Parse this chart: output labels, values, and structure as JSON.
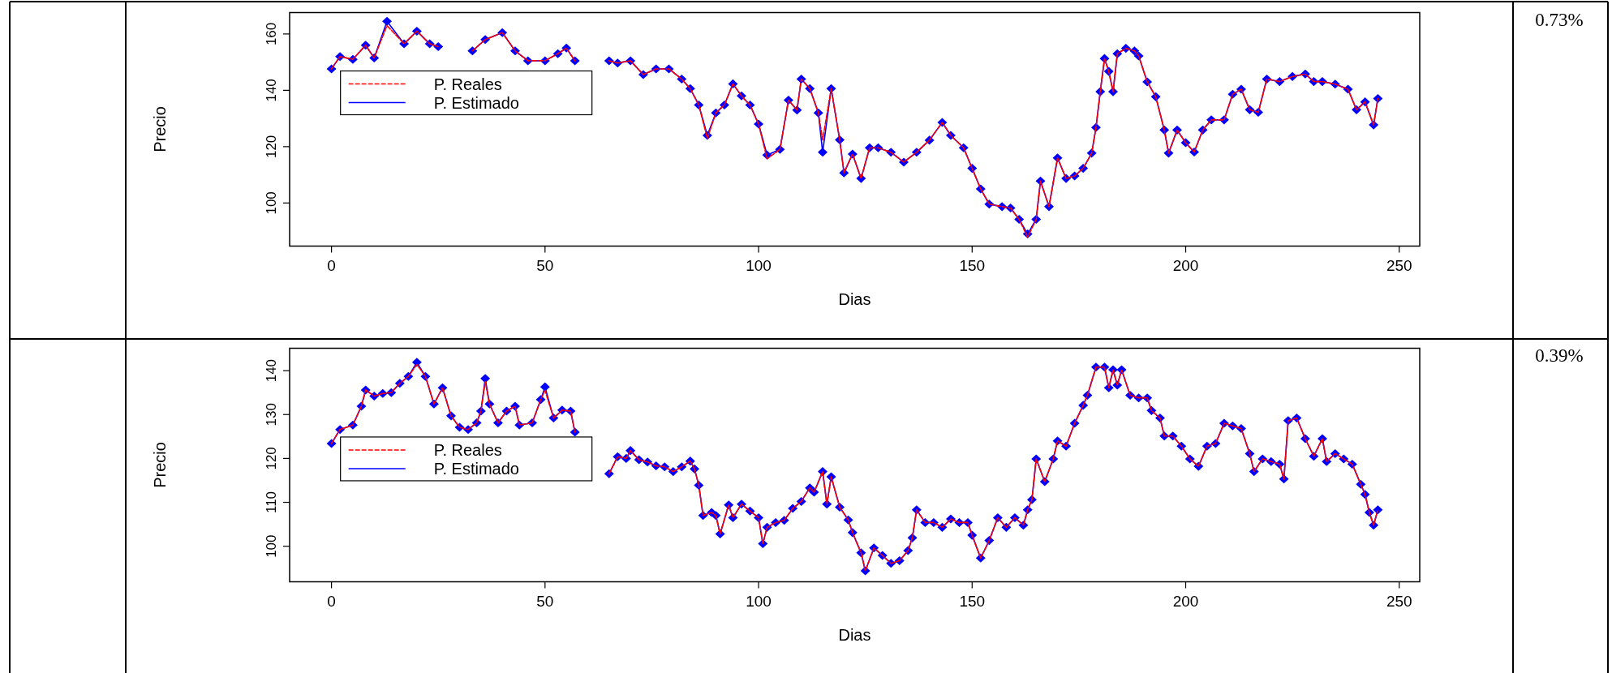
{
  "chart_data": [
    {
      "type": "line",
      "xlabel": "Dias",
      "ylabel": "Precio",
      "annotations": [
        "0.73%"
      ],
      "xlim": [
        -9.8,
        254.8
      ],
      "xticks": [
        0,
        50,
        100,
        150,
        200,
        250
      ],
      "ylim": [
        84.7,
        167.6
      ],
      "yticks": [
        100,
        120,
        140,
        160
      ],
      "grid": false,
      "legend": "top left",
      "x": [
        0,
        2,
        5,
        8,
        10,
        13,
        17,
        20,
        23,
        25,
        27,
        30,
        33,
        36,
        40,
        43,
        46,
        50,
        53,
        55,
        57,
        60,
        65,
        67,
        70,
        73,
        76,
        79,
        82,
        84,
        86,
        88,
        90,
        92,
        94,
        96,
        98,
        100,
        102,
        105,
        107,
        109,
        110,
        112,
        114,
        115,
        117,
        119,
        120,
        122,
        124,
        126,
        128,
        131,
        134,
        137,
        140,
        143,
        145,
        148,
        150,
        152,
        154,
        157,
        159,
        161,
        163,
        165,
        166,
        168,
        170,
        172,
        174,
        176,
        178,
        179,
        180,
        181,
        182,
        183,
        184,
        186,
        188,
        189,
        191,
        193,
        195,
        196,
        198,
        200,
        202,
        204,
        206,
        209,
        211,
        213,
        215,
        217,
        219,
        222,
        225,
        228,
        230,
        232,
        235,
        238,
        240,
        242,
        244,
        245
      ],
      "series": [
        {
          "name": "P. Reales",
          "color": "#ff0000",
          "line_style": "dashed",
          "marker": "none",
          "values": [
            147.6,
            152,
            151,
            156,
            151.5,
            163,
            156.5,
            161,
            156.5,
            155.5,
            null,
            null,
            154,
            158,
            160.5,
            154,
            150.5,
            150.5,
            153,
            155,
            150.5,
            null,
            150.5,
            149.7,
            150.5,
            145.6,
            147.6,
            147.6,
            144,
            140.6,
            134.8,
            123,
            132,
            134.8,
            142.3,
            138,
            134.8,
            128,
            115.7,
            119,
            136.5,
            133,
            144,
            140.6,
            132,
            122.4,
            140.6,
            122.4,
            110.7,
            117.4,
            108.7,
            119.6,
            119.6,
            118,
            114.5,
            118,
            122.3,
            128.6,
            124,
            119.6,
            112.3,
            105,
            99.6,
            98.7,
            98.2,
            94.2,
            87.9,
            94.2,
            107.8,
            98.7,
            116,
            108.7,
            109.6,
            112.3,
            117.7,
            126.8,
            139.5,
            151.3,
            146.7,
            139.5,
            153,
            154.9,
            154,
            152.2,
            143,
            137.7,
            125.9,
            117.7,
            125.9,
            121.4,
            118.1,
            125.9,
            129.5,
            129.5,
            138.6,
            140.4,
            133.1,
            132.2,
            144,
            143.1,
            144.9,
            145.8,
            143.1,
            143.1,
            142.2,
            140.4,
            133.1,
            135.9,
            127.7,
            137.1
          ]
        },
        {
          "name": "P. Estimado",
          "color": "#0000ff",
          "line_style": "solid",
          "marker": "diamond",
          "values": [
            147.6,
            152,
            151,
            156,
            151.5,
            164.5,
            156.5,
            161,
            156.5,
            155.5,
            null,
            null,
            154,
            158,
            160.5,
            154,
            150.5,
            150.5,
            153,
            155,
            150.5,
            null,
            150.5,
            149.7,
            150.5,
            145.6,
            147.6,
            147.6,
            144,
            140.6,
            134.8,
            124,
            132,
            134.8,
            142.3,
            138,
            134.8,
            128,
            117,
            119,
            136.5,
            133,
            144,
            140.6,
            132,
            118,
            140.6,
            122.4,
            110.7,
            117.4,
            108.7,
            119.6,
            119.6,
            118,
            114.5,
            118,
            122.3,
            128.6,
            124,
            119.6,
            112.3,
            105,
            99.6,
            98.7,
            98.2,
            94.2,
            89,
            94.2,
            107.8,
            98.7,
            116,
            108.7,
            109.6,
            112.3,
            117.7,
            126.8,
            139.5,
            151.3,
            146.7,
            139.5,
            153,
            154.9,
            154,
            152.2,
            143,
            137.7,
            125.9,
            117.7,
            125.9,
            121.4,
            118.1,
            125.9,
            129.5,
            129.5,
            138.6,
            140.4,
            133.1,
            132.2,
            144,
            143.1,
            144.9,
            145.8,
            143.1,
            143.1,
            142.2,
            140.4,
            133.1,
            135.9,
            127.7,
            137.1
          ]
        }
      ]
    },
    {
      "type": "line",
      "xlabel": "Dias",
      "ylabel": "Precio",
      "annotations": [
        "0.39%"
      ],
      "xlim": [
        -9.8,
        254.8
      ],
      "xticks": [
        0,
        50,
        100,
        150,
        200,
        250
      ],
      "ylim": [
        91.9,
        145.1
      ],
      "yticks": [
        100,
        110,
        120,
        130,
        140
      ],
      "grid": false,
      "legend": "top left",
      "x": [
        0,
        2,
        5,
        7,
        8,
        10,
        12,
        14,
        16,
        18,
        20,
        22,
        24,
        26,
        28,
        30,
        32,
        34,
        35,
        36,
        37,
        39,
        41,
        43,
        44,
        47,
        49,
        50,
        52,
        54,
        56,
        57,
        60,
        65,
        67,
        69,
        70,
        72,
        74,
        76,
        78,
        80,
        82,
        84,
        85,
        86,
        87,
        89,
        90,
        91,
        93,
        94,
        96,
        98,
        100,
        101,
        102,
        104,
        106,
        108,
        110,
        112,
        113,
        115,
        116,
        117,
        119,
        121,
        122,
        124,
        125,
        127,
        129,
        131,
        133,
        135,
        136,
        137,
        139,
        141,
        143,
        145,
        147,
        149,
        150,
        152,
        154,
        156,
        158,
        160,
        162,
        163,
        164,
        165,
        167,
        169,
        170,
        172,
        174,
        176,
        177,
        179,
        181,
        182,
        183,
        184,
        185,
        187,
        189,
        191,
        192,
        194,
        195,
        197,
        199,
        201,
        203,
        205,
        207,
        209,
        211,
        213,
        215,
        216,
        218,
        220,
        222,
        223,
        224,
        226,
        228,
        230,
        232,
        233,
        235,
        237,
        239,
        241,
        242,
        243,
        244,
        245
      ],
      "series": [
        {
          "name": "P. Reales",
          "color": "#ff0000",
          "line_style": "dashed",
          "marker": "none",
          "values": [
            123.4,
            126.6,
            127.6,
            131.9,
            135.6,
            134.2,
            134.8,
            135,
            137.1,
            138.7,
            141.4,
            138.7,
            132.4,
            136.1,
            129.7,
            127.1,
            126.6,
            128.1,
            130.8,
            137.5,
            132.4,
            128.1,
            130.8,
            131.9,
            127.6,
            128.1,
            133.4,
            135.5,
            129.2,
            131,
            130.8,
            126,
            null,
            116.5,
            120.4,
            120,
            121.8,
            119.7,
            119.2,
            118.3,
            118.1,
            117,
            118.1,
            119.4,
            117.6,
            113.9,
            107,
            107.7,
            107,
            102.8,
            109.4,
            106.5,
            109.6,
            108,
            106.5,
            100.6,
            104.3,
            105.4,
            105.9,
            108.6,
            110.2,
            113.3,
            112.3,
            117,
            109.6,
            115.8,
            108.9,
            106,
            103.1,
            98.5,
            94.4,
            99.6,
            97.9,
            96.1,
            96.7,
            99,
            101.9,
            108.3,
            105.4,
            105.4,
            104.3,
            106.2,
            105.4,
            105.4,
            102.5,
            97.3,
            101.3,
            106.5,
            104.3,
            106.5,
            104.8,
            108.3,
            110.6,
            119.9,
            114.7,
            119.9,
            124,
            122.8,
            128,
            132.1,
            134.4,
            140.8,
            140.8,
            136.1,
            140.2,
            136.7,
            140.2,
            134.4,
            133.8,
            133.8,
            130.9,
            129.2,
            125.1,
            125.1,
            122.8,
            119.9,
            118.2,
            122.8,
            123.4,
            128,
            127.4,
            126.8,
            121.1,
            117,
            119.9,
            119.3,
            118.7,
            115.3,
            128.6,
            129.2,
            124.5,
            120.5,
            124.5,
            119.3,
            121.1,
            119.9,
            118.7,
            114.1,
            111.8,
            107.7,
            104.8,
            108.3
          ]
        },
        {
          "name": "P. Estimado",
          "color": "#0000ff",
          "line_style": "solid",
          "marker": "diamond",
          "values": [
            123.4,
            126.6,
            127.6,
            131.9,
            135.6,
            134.2,
            134.8,
            135,
            137.1,
            138.7,
            141.9,
            138.7,
            132.4,
            136.1,
            129.7,
            127.1,
            126.6,
            128.1,
            130.8,
            138.2,
            132.4,
            128.1,
            130.8,
            131.9,
            127.6,
            128.1,
            133.4,
            136.3,
            129.2,
            131,
            130.8,
            126,
            null,
            116.5,
            120.4,
            120,
            121.8,
            119.7,
            119.2,
            118.3,
            118.1,
            117,
            118.1,
            119.4,
            117.6,
            113.9,
            107,
            107.7,
            107,
            102.8,
            109.4,
            106.5,
            109.6,
            108,
            106.5,
            100.6,
            104.3,
            105.4,
            105.9,
            108.6,
            110.2,
            113.3,
            112.3,
            117,
            109.6,
            115.8,
            108.9,
            106,
            103.1,
            98.5,
            94.4,
            99.6,
            97.9,
            96.1,
            96.7,
            99,
            101.9,
            108.3,
            105.4,
            105.4,
            104.3,
            106.2,
            105.4,
            105.4,
            102.5,
            97.3,
            101.3,
            106.5,
            104.3,
            106.5,
            104.8,
            108.3,
            110.6,
            119.9,
            114.7,
            119.9,
            124,
            122.8,
            128,
            132.1,
            134.4,
            140.8,
            140.8,
            136.1,
            140.2,
            136.7,
            140.2,
            134.4,
            133.8,
            133.8,
            130.9,
            129.2,
            125.1,
            125.1,
            122.8,
            119.9,
            118.2,
            122.8,
            123.4,
            128,
            127.4,
            126.8,
            121.1,
            117,
            119.9,
            119.3,
            118.7,
            115.3,
            128.6,
            129.2,
            124.5,
            120.5,
            124.5,
            119.3,
            121.1,
            119.9,
            118.7,
            114.1,
            111.8,
            107.7,
            104.8,
            108.3
          ]
        }
      ]
    }
  ]
}
